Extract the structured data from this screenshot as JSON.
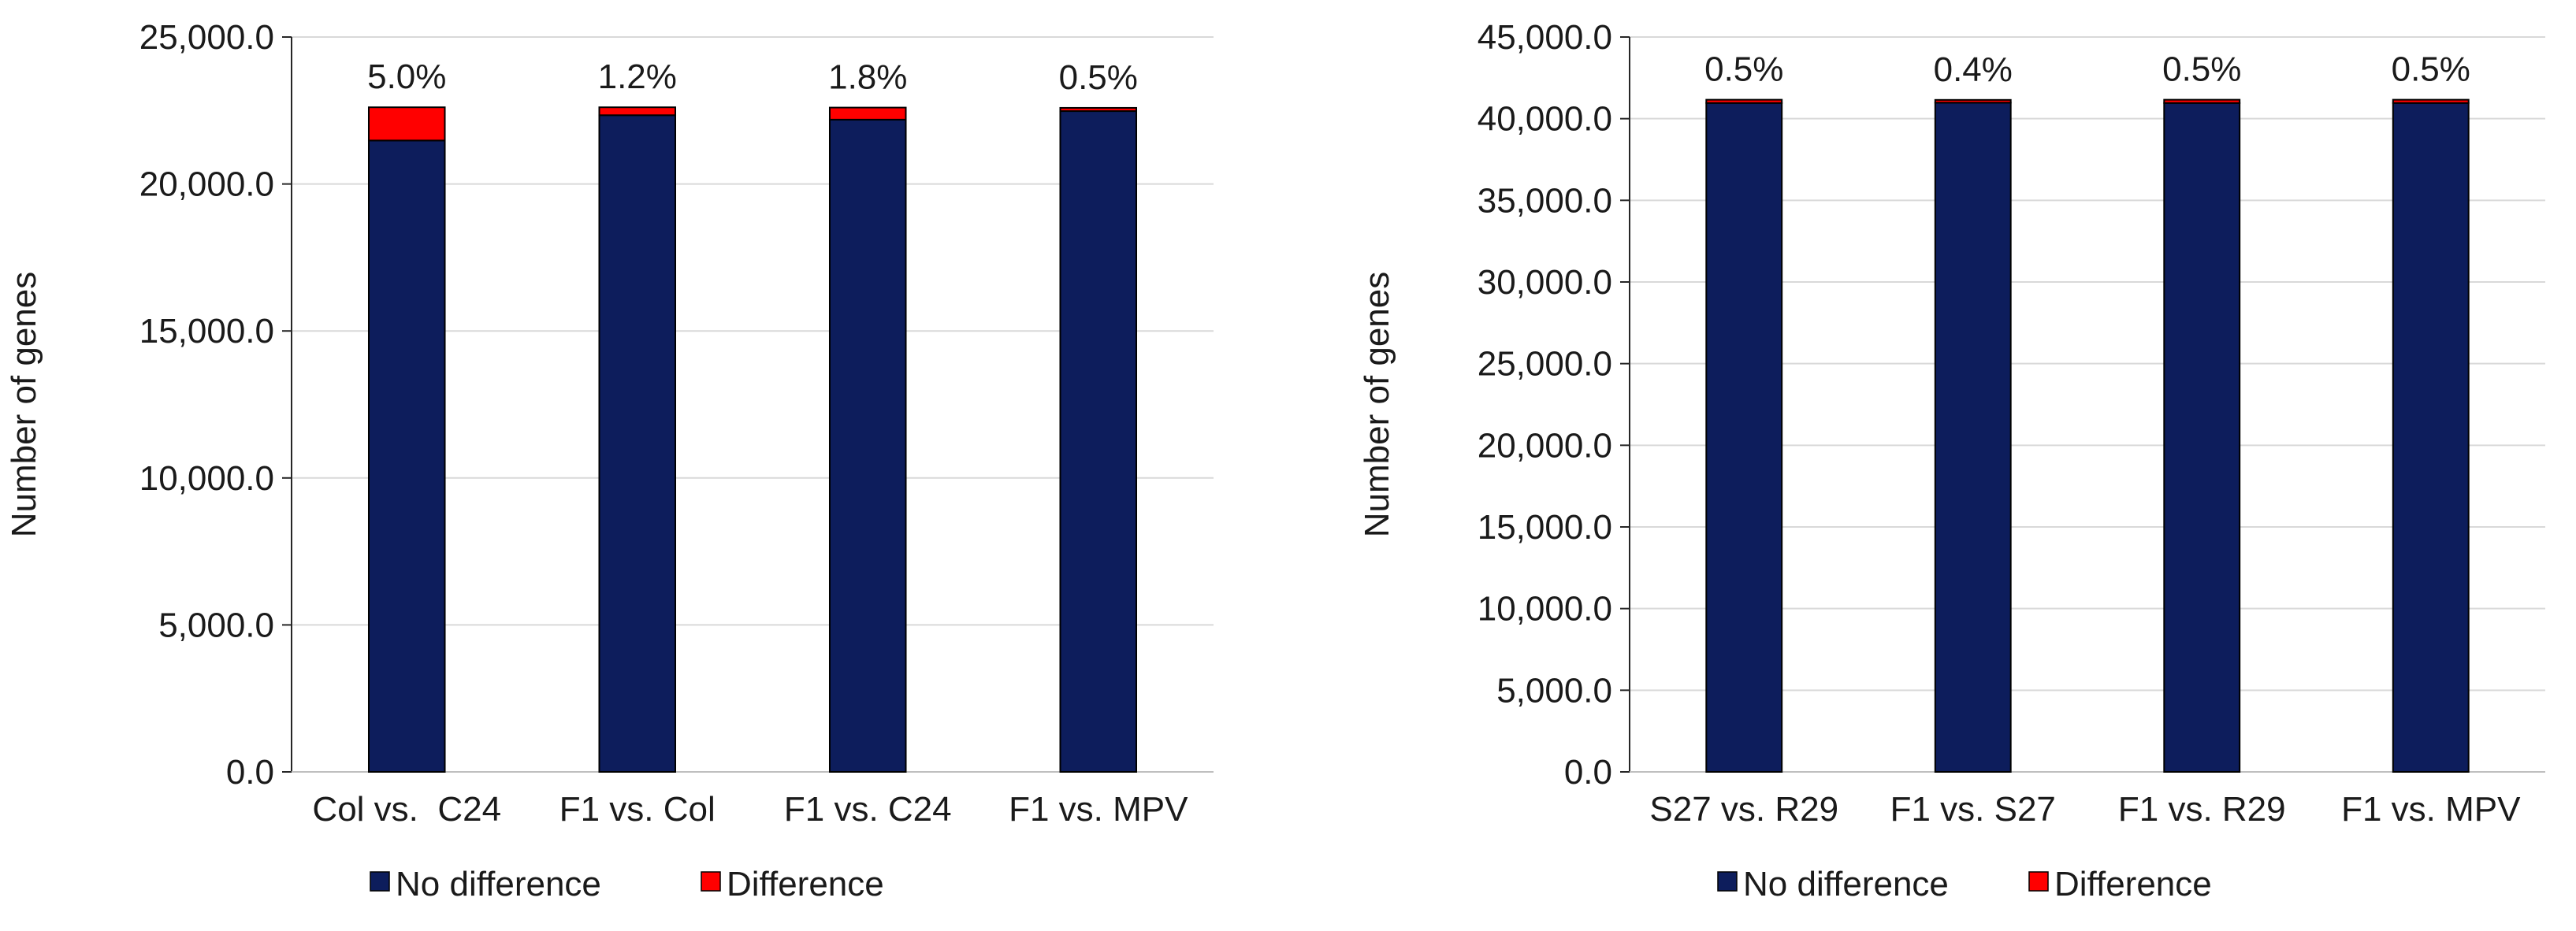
{
  "chart_data": [
    {
      "type": "bar",
      "stacked": true,
      "ylabel": "Number of genes",
      "ylim": [
        0,
        25000
      ],
      "yticks": [
        "0.0",
        "5,000.0",
        "10,000.0",
        "15,000.0",
        "20,000.0",
        "25,000.0"
      ],
      "categories": [
        "Col vs.  C24",
        "F1 vs. Col",
        "F1 vs. C24",
        "F1 vs. MPV"
      ],
      "series": [
        {
          "name": "No difference",
          "color": "#0d1d5c",
          "values": [
            21480,
            22340,
            22190,
            22480
          ]
        },
        {
          "name": "Difference",
          "color": "#ff0000",
          "values": [
            1130,
            270,
            410,
            110
          ]
        }
      ],
      "data_labels": [
        "5.0%",
        "1.2%",
        "1.8%",
        "0.5%"
      ],
      "grid": true,
      "legend": "bottom"
    },
    {
      "type": "bar",
      "stacked": true,
      "ylabel": "Number of genes",
      "ylim": [
        0,
        45000
      ],
      "yticks": [
        "0.0",
        "5,000.0",
        "10,000.0",
        "15,000.0",
        "20,000.0",
        "25,000.0",
        "30,000.0",
        "35,000.0",
        "40,000.0",
        "45,000.0"
      ],
      "categories": [
        "S27 vs. R29",
        "F1 vs. S27",
        "F1 vs. R29",
        "F1 vs. MPV"
      ],
      "series": [
        {
          "name": "No difference",
          "color": "#0d1d5c",
          "values": [
            40960,
            40980,
            40960,
            40960
          ]
        },
        {
          "name": "Difference",
          "color": "#ff0000",
          "values": [
            200,
            170,
            200,
            200
          ]
        }
      ],
      "data_labels": [
        "0.5%",
        "0.4%",
        "0.5%",
        "0.5%"
      ],
      "grid": true,
      "legend": "bottom"
    }
  ]
}
